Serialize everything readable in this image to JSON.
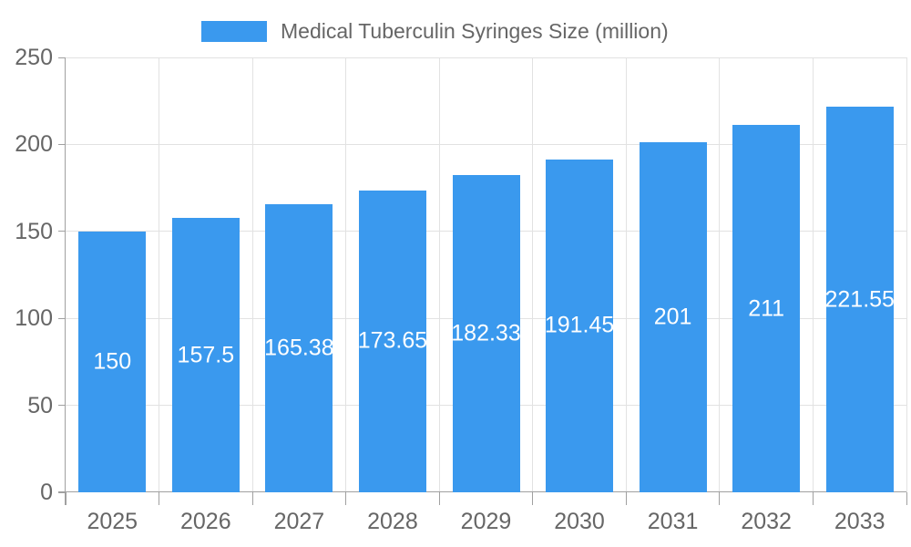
{
  "chart_data": {
    "type": "bar",
    "title": "Medical Tuberculin Syringes Size (million)",
    "categories": [
      "2025",
      "2026",
      "2027",
      "2028",
      "2029",
      "2030",
      "2031",
      "2032",
      "2033"
    ],
    "series": [
      {
        "name": "Medical Tuberculin Syringes Size (million)",
        "values": [
          150,
          157.5,
          165.38,
          173.65,
          182.33,
          191.45,
          201,
          211,
          221.55
        ]
      }
    ],
    "value_labels": [
      "150",
      "157.5",
      "165.38",
      "173.65",
      "182.33",
      "191.45",
      "201",
      "211",
      "221.55"
    ],
    "xlabel": "",
    "ylabel": "",
    "ylim": [
      0,
      250
    ],
    "yticks": [
      0,
      50,
      100,
      150,
      200,
      250
    ],
    "grid": true,
    "legend_position": "top-center",
    "colors": {
      "bar": "#3a99ee",
      "grid": "#e2e2e2",
      "axis": "#a0a0a0",
      "tick_text": "#666666",
      "bar_label": "#ffffff"
    }
  }
}
